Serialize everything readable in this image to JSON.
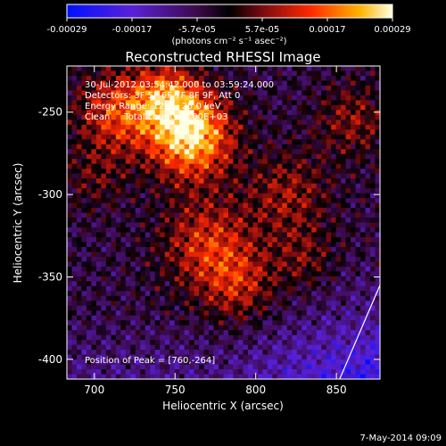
{
  "colorbar": {
    "ticks": [
      "-0.00029",
      "-0.00017",
      "-5.7e-05",
      "5.7e-05",
      "0.00017",
      "0.00029"
    ],
    "units": "(photons cm⁻² s⁻¹ asec⁻²)",
    "vmin": -0.00029,
    "vmax": 0.00029
  },
  "chart_data": {
    "type": "heatmap",
    "title": "Reconstructed RHESSI Image",
    "xlabel": "Heliocentric X (arcsec)",
    "ylabel": "Heliocentric Y (arcsec)",
    "xlim": [
      683,
      877
    ],
    "ylim": [
      -412,
      -222
    ],
    "x_ticks": [
      700,
      750,
      800,
      850
    ],
    "y_ticks": [
      -250,
      -300,
      -350,
      -400
    ],
    "annotations": [
      "30-Jul-2012 03:54:42.000 to 03:59:24.000",
      "Detectors: 3F 5F 6F 7F 8F 9F, Att 0",
      "Energy Range: 12.0 - 25.0 keV",
      "Clean     Total counts: 4.00E+03"
    ],
    "peak_label": "Position of Peak = [760,-264]",
    "peak": [
      760,
      -264
    ],
    "limb_line": [
      [
        852,
        -412
      ],
      [
        877,
        -355
      ]
    ],
    "colormap": "rhessi-blue-red-yellow"
  },
  "footer": {
    "date": "7-May-2014 09:09"
  }
}
